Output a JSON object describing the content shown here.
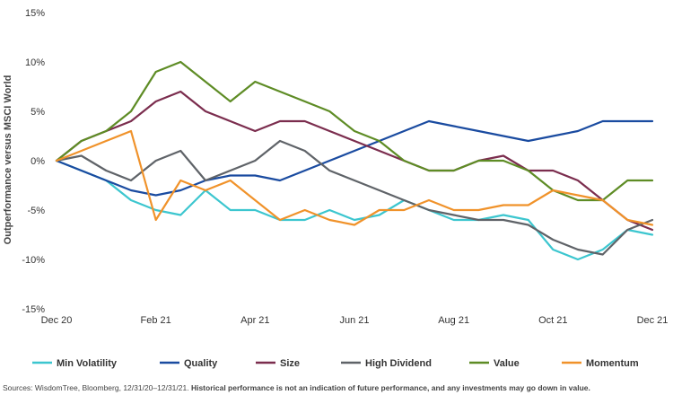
{
  "chart_data": {
    "type": "line",
    "ylabel": "Outperformance versus MSCI World",
    "y_ticks": [
      "15%",
      "10%",
      "5%",
      "0%",
      "-5%",
      "-10%",
      "-15%"
    ],
    "ylim": [
      -15,
      15
    ],
    "x_ticks": [
      "Dec 20",
      "Feb 21",
      "Apr 21",
      "Jun 21",
      "Aug 21",
      "Oct 21",
      "Dec 21"
    ],
    "xlim": [
      0,
      12
    ],
    "x_unit": "months since Dec 20",
    "legend_position": "bottom",
    "grid": false,
    "series": [
      {
        "name": "Min Volatility",
        "color": "#3cc6cf",
        "x": [
          0,
          0.5,
          1,
          1.5,
          2,
          2.5,
          3,
          3.5,
          4,
          4.5,
          5,
          5.5,
          6,
          6.5,
          7,
          7.5,
          8,
          8.5,
          9,
          9.5,
          10,
          10.5,
          11,
          11.5,
          12
        ],
        "y": [
          0,
          -1,
          -2,
          -4,
          -5,
          -5.5,
          -3,
          -5,
          -5,
          -6,
          -6,
          -5,
          -6,
          -5.5,
          -4,
          -5,
          -6,
          -6,
          -5.5,
          -6,
          -9,
          -10,
          -9,
          -7,
          -7.5
        ]
      },
      {
        "name": "Quality",
        "color": "#1a4ba0",
        "x": [
          0,
          0.5,
          1,
          1.5,
          2,
          2.5,
          3,
          3.5,
          4,
          4.5,
          5,
          5.5,
          6,
          6.5,
          7,
          7.5,
          8,
          8.5,
          9,
          9.5,
          10,
          10.5,
          11,
          11.5,
          12
        ],
        "y": [
          0,
          -1,
          -2,
          -3,
          -3.5,
          -3,
          -2,
          -1.5,
          -1.5,
          -2,
          -1,
          0,
          1,
          2,
          3,
          4,
          3.5,
          3,
          2.5,
          2,
          2.5,
          3,
          4,
          4,
          4
        ]
      },
      {
        "name": "Size",
        "color": "#7b2d4e",
        "x": [
          0,
          0.5,
          1,
          1.5,
          2,
          2.5,
          3,
          3.5,
          4,
          4.5,
          5,
          5.5,
          6,
          6.5,
          7,
          7.5,
          8,
          8.5,
          9,
          9.5,
          10,
          10.5,
          11,
          11.5,
          12
        ],
        "y": [
          0,
          2,
          3,
          4,
          6,
          7,
          5,
          4,
          3,
          4,
          4,
          3,
          2,
          1,
          0,
          -1,
          -1,
          0,
          0.5,
          -1,
          -1,
          -2,
          -4,
          -6,
          -7
        ]
      },
      {
        "name": "High Dividend",
        "color": "#5f6368",
        "x": [
          0,
          0.5,
          1,
          1.5,
          2,
          2.5,
          3,
          3.5,
          4,
          4.5,
          5,
          5.5,
          6,
          6.5,
          7,
          7.5,
          8,
          8.5,
          9,
          9.5,
          10,
          10.5,
          11,
          11.5,
          12
        ],
        "y": [
          0,
          0.5,
          -1,
          -2,
          0,
          1,
          -2,
          -1,
          0,
          2,
          1,
          -1,
          -2,
          -3,
          -4,
          -5,
          -5.5,
          -6,
          -6,
          -6.5,
          -8,
          -9,
          -9.5,
          -7,
          -6
        ]
      },
      {
        "name": "Value",
        "color": "#5e8c25",
        "x": [
          0,
          0.5,
          1,
          1.5,
          2,
          2.5,
          3,
          3.5,
          4,
          4.5,
          5,
          5.5,
          6,
          6.5,
          7,
          7.5,
          8,
          8.5,
          9,
          9.5,
          10,
          10.5,
          11,
          11.5,
          12
        ],
        "y": [
          0,
          2,
          3,
          5,
          9,
          10,
          8,
          6,
          8,
          7,
          6,
          5,
          3,
          2,
          0,
          -1,
          -1,
          0,
          0,
          -1,
          -3,
          -4,
          -4,
          -2,
          -2
        ]
      },
      {
        "name": "Momentum",
        "color": "#f0922a",
        "x": [
          0,
          0.5,
          1,
          1.5,
          2,
          2.5,
          3,
          3.5,
          4,
          4.5,
          5,
          5.5,
          6,
          6.5,
          7,
          7.5,
          8,
          8.5,
          9,
          9.5,
          10,
          10.5,
          11,
          11.5,
          12
        ],
        "y": [
          0,
          1,
          2,
          3,
          -6,
          -2,
          -3,
          -2,
          -4,
          -6,
          -5,
          -6,
          -6.5,
          -5,
          -5,
          -4,
          -5,
          -5,
          -4.5,
          -4.5,
          -3,
          -3.5,
          -4,
          -6,
          -6.5
        ]
      }
    ]
  },
  "source": {
    "text": "Sources: WisdomTree, Bloomberg, 12/31/20–12/31/21.",
    "disclaimer": "Historical performance is not an indication of future performance, and any investments may go down in value."
  }
}
